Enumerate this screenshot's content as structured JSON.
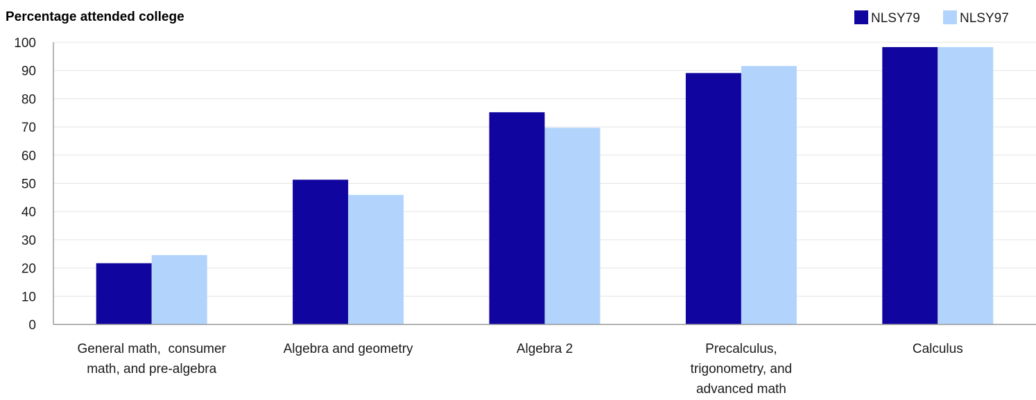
{
  "chart_data": {
    "type": "bar",
    "title": "",
    "ylabel": "Percentage attended college",
    "xlabel": "",
    "ylim": [
      0,
      100
    ],
    "yticks": [
      "0",
      "10",
      "20",
      "30",
      "40",
      "50",
      "60",
      "70",
      "80",
      "90",
      "100"
    ],
    "grid": true,
    "legend_position": "top-right",
    "categories": [
      [
        "General math,  consumer",
        "math, and pre-algebra"
      ],
      [
        "Algebra and geometry"
      ],
      [
        "Algebra 2"
      ],
      [
        "Precalculus,",
        "trigonometry, and",
        "advanced math"
      ],
      [
        "Calculus"
      ]
    ],
    "series": [
      {
        "name": "NLSY79",
        "color": "#10069f",
        "values": [
          21.7,
          51.3,
          75.2,
          89.1,
          98.3
        ]
      },
      {
        "name": "NLSY97",
        "color": "#b2d4fc",
        "values": [
          24.6,
          45.9,
          69.7,
          91.6,
          98.3
        ]
      }
    ]
  }
}
